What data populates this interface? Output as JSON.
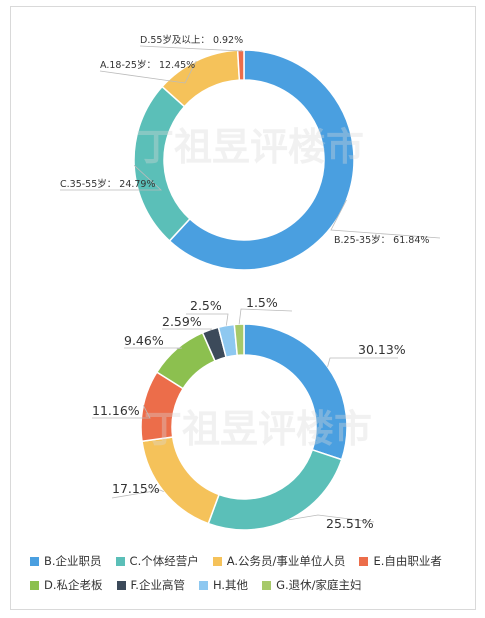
{
  "watermark": "丁祖昱评楼市",
  "chart_data": [
    {
      "type": "pie",
      "variant": "donut",
      "title": "",
      "slices": [
        {
          "label": "B.25-35岁",
          "value": 61.84,
          "display": "61.84%",
          "color": "#4a9fe0"
        },
        {
          "label": "C.35-55岁",
          "value": 24.79,
          "display": "24.79%",
          "color": "#5bbfb8"
        },
        {
          "label": "A.18-25岁",
          "value": 12.45,
          "display": "12.45%",
          "color": "#f5c25a"
        },
        {
          "label": "D.55岁及以上",
          "value": 0.92,
          "display": "0.92%",
          "color": "#ec6d4a"
        }
      ],
      "label_separator": "："
    },
    {
      "type": "pie",
      "variant": "donut",
      "title": "",
      "slices": [
        {
          "label": "B.企业职员",
          "value": 30.13,
          "display": "30.13%",
          "color": "#4a9fe0"
        },
        {
          "label": "C.个体经营户",
          "value": 25.51,
          "display": "25.51%",
          "color": "#5bbfb8"
        },
        {
          "label": "A.公务员/事业单位人员",
          "value": 17.15,
          "display": "17.15%",
          "color": "#f5c25a"
        },
        {
          "label": "E.自由职业者",
          "value": 11.16,
          "display": "11.16%",
          "color": "#ec6d4a"
        },
        {
          "label": "D.私企老板",
          "value": 9.46,
          "display": "9.46%",
          "color": "#8cc04f"
        },
        {
          "label": "F.企业高管",
          "value": 2.59,
          "display": "2.59%",
          "color": "#3c4a5a"
        },
        {
          "label": "H.其他",
          "value": 2.5,
          "display": "2.5%",
          "color": "#8ec8f0"
        },
        {
          "label": "G.退休/家庭主妇",
          "value": 1.5,
          "display": "1.5%",
          "color": "#a7c96a"
        }
      ],
      "legend": {
        "position": "bottom",
        "rows": [
          [
            "B.企业职员",
            "C.个体经营户",
            "A.公务员/事业单位人员",
            "E.自由职业者"
          ],
          [
            "D.私企老板",
            "F.企业高管",
            "H.其他",
            "G.退休/家庭主妇"
          ]
        ]
      }
    }
  ]
}
